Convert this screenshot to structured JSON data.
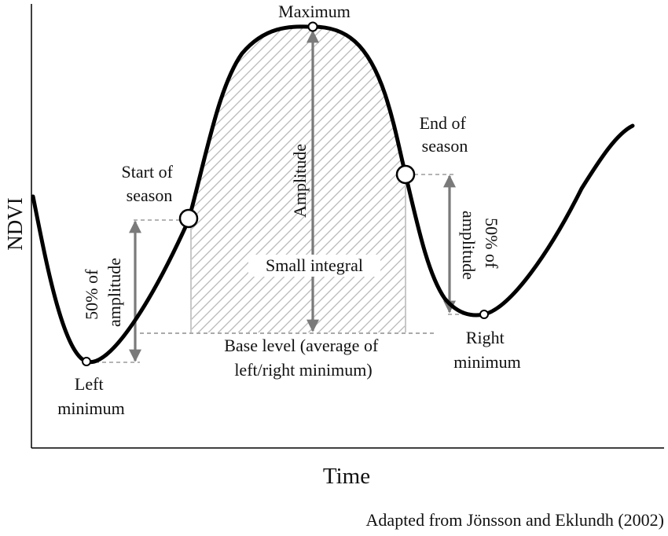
{
  "labels": {
    "maximum": "Maximum",
    "start_of_season_line1": "Start of",
    "start_of_season_line2": "season",
    "end_of_season_line1": "End of",
    "end_of_season_line2": "season",
    "amplitude": "Amplitude",
    "small_integral": "Small integral",
    "base_level_line1": "Base level (average of",
    "base_level_line2": "left/right minimum)",
    "left_half_amp_line1": "50% of",
    "left_half_amp_line2": "amplitude",
    "right_half_amp_line1": "50% of",
    "right_half_amp_line2": "amplitude",
    "left_minimum_line1": "Left",
    "left_minimum_line2": "minimum",
    "right_minimum_line1": "Right",
    "right_minimum_line2": "minimum",
    "y_axis": "NDVI",
    "x_axis": "Time",
    "credit": "Adapted from Jönsson and Eklundh (2002)"
  },
  "colors": {
    "curve": "#000000",
    "arrow": "#7a7a7a",
    "hatch": "#b4b4b4",
    "guide": "#8a8a8a",
    "text": "#111111"
  }
}
